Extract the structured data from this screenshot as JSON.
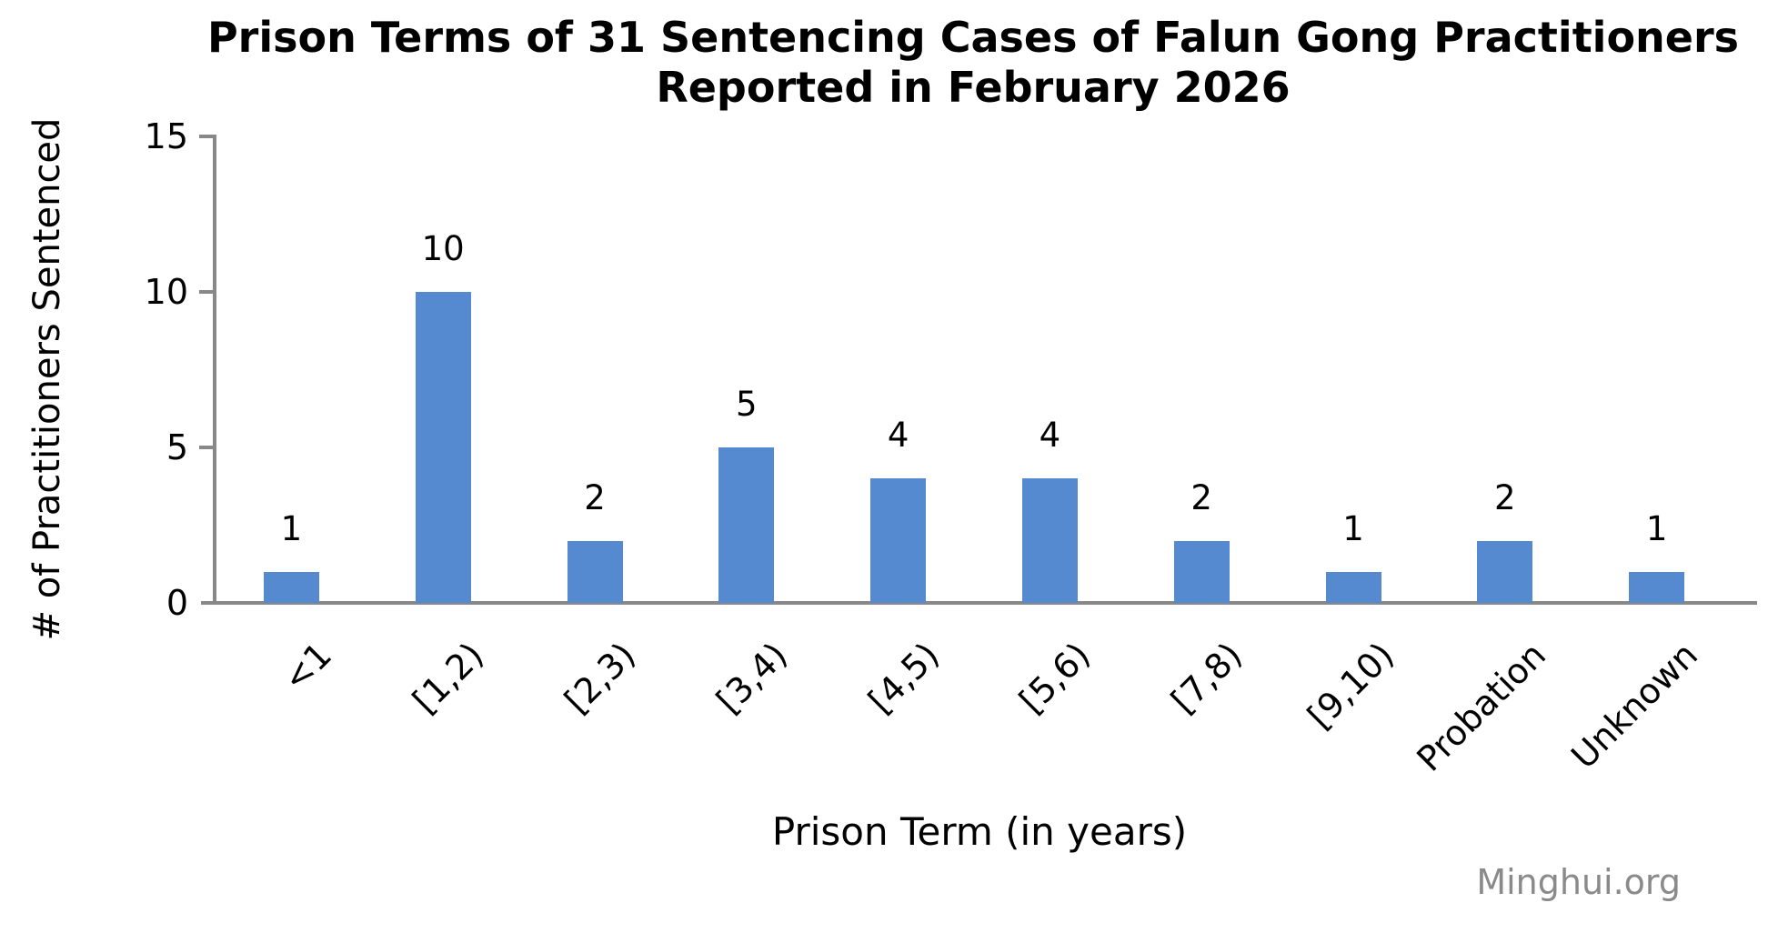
{
  "title": {
    "line1": "Prison Terms of 31 Sentencing Cases of Falun Gong Practitioners",
    "line2": "Reported in February 2026"
  },
  "watermark": "Minghui.org",
  "chart_data": {
    "type": "bar",
    "title": "Prison Terms of 31 Sentencing Cases of Falun Gong Practitioners Reported in February 2026",
    "categories": [
      "<1",
      "[1,2)",
      "[2,3)",
      "[3,4)",
      "[4,5)",
      "[5,6)",
      "[7,8)",
      "[9,10)",
      "Probation",
      "Unknown"
    ],
    "values": [
      1,
      10,
      2,
      5,
      4,
      4,
      2,
      1,
      2,
      1
    ],
    "total_cases": 31,
    "xlabel": "Prison Term (in years)",
    "ylabel": "# of Practitioners Sentenced",
    "ylim": [
      0,
      15
    ],
    "yticks": [
      0,
      5,
      10,
      15
    ],
    "grid": false,
    "legend": "none",
    "bar_labels_shown": true,
    "x_tick_rotation_deg": -45,
    "bar_color": "#5589D0",
    "axis_color": "#888888",
    "text_color": "#000000",
    "watermark_color": "#8A8A8A",
    "background_color": "#FFFFFF"
  }
}
